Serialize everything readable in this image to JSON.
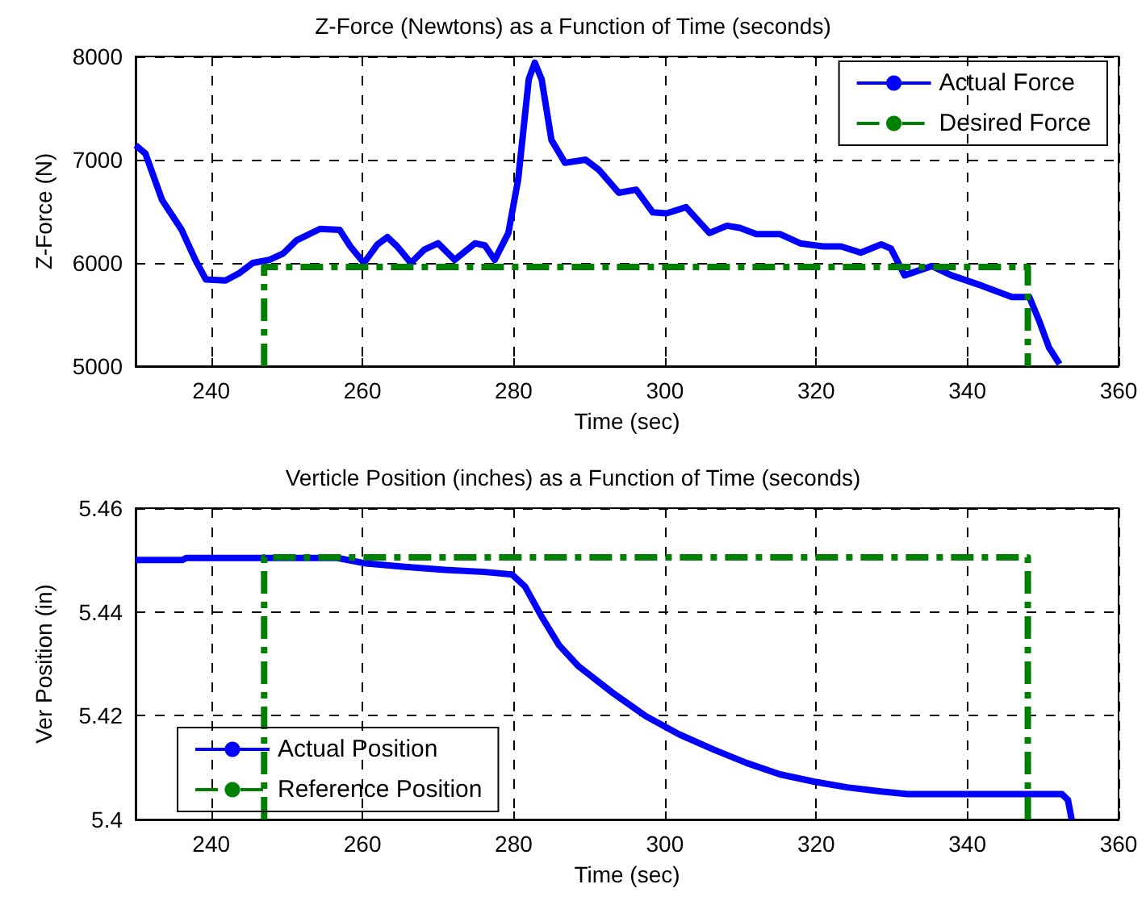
{
  "chart_data": [
    {
      "type": "line",
      "title": "Z-Force (Newtons) as a Function of Time (seconds)",
      "xlabel": "Time (sec)",
      "ylabel": "Z-Force (N)",
      "xlim": [
        230,
        360
      ],
      "xticks": [
        240,
        260,
        280,
        300,
        320,
        340,
        360
      ],
      "ylim": [
        5000,
        8000
      ],
      "yticks": [
        5000,
        6000,
        7000,
        8000
      ],
      "grid": true,
      "legend": "top right",
      "marker": "none",
      "series": [
        {
          "name": "Actual Force",
          "color": "#0000ff",
          "line_style": "solid",
          "x": [
            230,
            231.3,
            233.5,
            236.1,
            237.9,
            239.3,
            241.9,
            243.7,
            245.5,
            247.7,
            249.5,
            251.3,
            254.4,
            257,
            258.4,
            260.2,
            262,
            263.3,
            264.6,
            266.4,
            268.2,
            270,
            272.2,
            274.9,
            276.2,
            277.5,
            279.3,
            280.6,
            282,
            282.8,
            283.7,
            285,
            286.8,
            289.5,
            291.3,
            293.9,
            296.2,
            298.4,
            300.2,
            302.8,
            305.9,
            308.2,
            309.9,
            312.1,
            315.2,
            317.9,
            321,
            323.3,
            325.9,
            328.6,
            329.9,
            331.7,
            335.3,
            337.9,
            341.9,
            345.9,
            348.2,
            349.5,
            350.8,
            352.2
          ],
          "values": [
            7140,
            7060,
            6610,
            6320,
            6030,
            5840,
            5830,
            5900,
            6000,
            6030,
            6090,
            6220,
            6330,
            6320,
            6160,
            6000,
            6180,
            6250,
            6160,
            6000,
            6130,
            6190,
            6030,
            6190,
            6170,
            6030,
            6290,
            6810,
            7780,
            7940,
            7780,
            7190,
            6970,
            7000,
            6900,
            6680,
            6710,
            6490,
            6480,
            6540,
            6290,
            6360,
            6340,
            6280,
            6280,
            6190,
            6160,
            6160,
            6100,
            6180,
            6140,
            5880,
            5970,
            5880,
            5780,
            5670,
            5670,
            5440,
            5180,
            5020
          ]
        },
        {
          "name": "Desired Force",
          "color": "#008000",
          "line_style": "dashed",
          "x": [
            247,
            247,
            348,
            348
          ],
          "values": [
            5000,
            5960,
            5960,
            5000
          ]
        }
      ]
    },
    {
      "type": "line",
      "title": "Verticle Position (inches) as a Function of Time (seconds)",
      "xlabel": "Time (sec)",
      "ylabel": "Ver Position (in)",
      "xlim": [
        230,
        360
      ],
      "xticks": [
        240,
        260,
        280,
        300,
        320,
        340,
        360
      ],
      "ylim": [
        5.4,
        5.46
      ],
      "yticks": [
        5.4,
        5.42,
        5.44,
        5.46
      ],
      "grid": true,
      "legend": "bottom left",
      "marker": "none",
      "series": [
        {
          "name": "Actual Position",
          "color": "#0000ff",
          "line_style": "solid",
          "x": [
            230,
            236.2,
            236.7,
            256.7,
            260.2,
            265.6,
            270.9,
            276.2,
            279.8,
            281.5,
            283.7,
            286,
            288.6,
            293.1,
            297.5,
            301.9,
            306.4,
            310.8,
            315.2,
            319.7,
            324.1,
            328.6,
            332.1,
            352.5,
            353.3,
            353.8
          ],
          "values": [
            5.45,
            5.45,
            5.4504,
            5.4504,
            5.4494,
            5.4487,
            5.4481,
            5.4477,
            5.4472,
            5.4449,
            5.4391,
            5.4336,
            5.4295,
            5.4244,
            5.4199,
            5.4164,
            5.4135,
            5.4109,
            5.4087,
            5.4073,
            5.4062,
            5.4054,
            5.4049,
            5.4049,
            5.4038,
            5.4
          ]
        },
        {
          "name": "Reference Position",
          "color": "#008000",
          "line_style": "dashed",
          "x": [
            247,
            247,
            348,
            348
          ],
          "values": [
            5.4,
            5.4505,
            5.4505,
            5.4
          ]
        }
      ]
    }
  ]
}
